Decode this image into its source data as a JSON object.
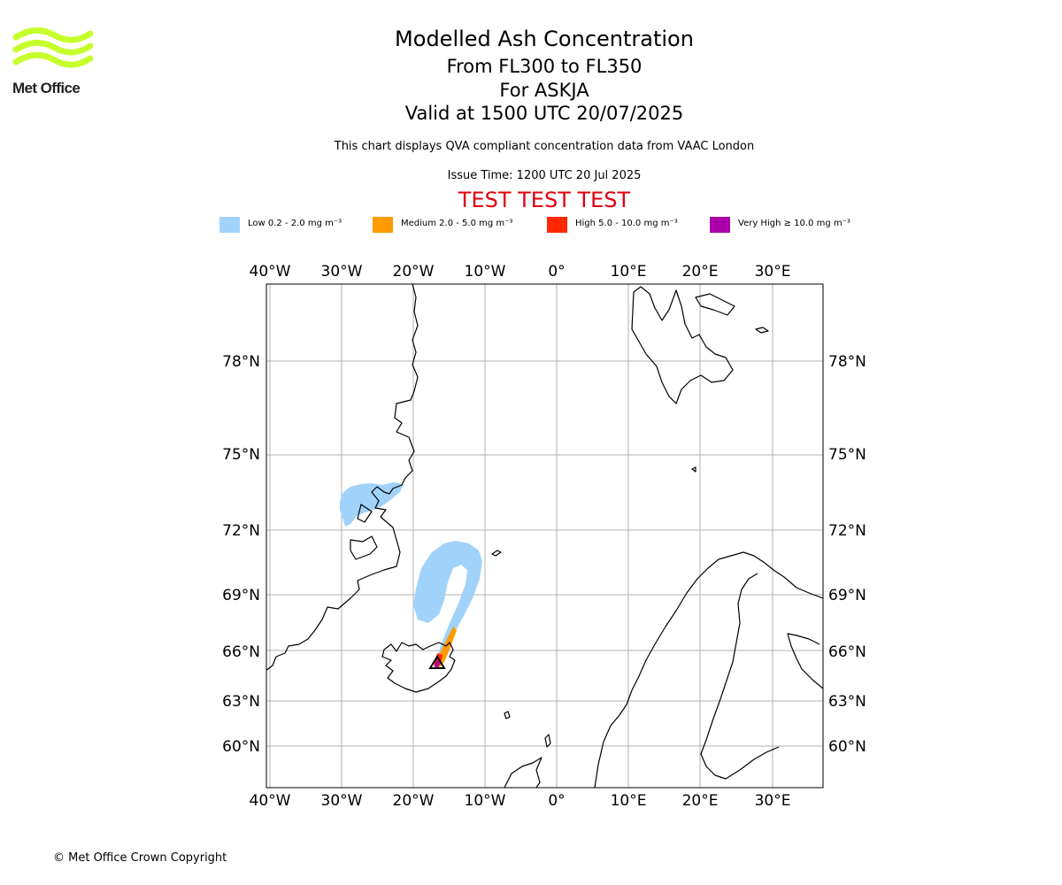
{
  "header": {
    "title": "Modelled Ash Concentration",
    "subtitle_levels": "From FL300 to FL350",
    "subtitle_volcano": "For ASKJA",
    "subtitle_valid": "Valid at 1500 UTC 20/07/2025",
    "description": "This chart displays QVA compliant concentration data from VAAC London",
    "issue_time": "Issue Time: 1200 UTC 20 Jul 2025",
    "test_banner": "TEST TEST TEST"
  },
  "logo": {
    "text": "Met Office",
    "icon": "met-office-waves-logo",
    "color": "#c6ff2c"
  },
  "legend": [
    {
      "label": "Low 0.2 - 2.0 mg m⁻³",
      "color": "#a0d2fa"
    },
    {
      "label": "Medium 2.0 - 5.0 mg m⁻³",
      "color": "#ff9a00"
    },
    {
      "label": "High 5.0 - 10.0 mg m⁻³",
      "color": "#ff2800"
    },
    {
      "label": "Very High ≥ 10.0 mg m⁻³",
      "color": "#aa00aa"
    }
  ],
  "map": {
    "lon_ticks": [
      "40°W",
      "30°W",
      "20°W",
      "10°W",
      "0°",
      "10°E",
      "20°E",
      "30°E"
    ],
    "lat_ticks": [
      "78°N",
      "75°N",
      "72°N",
      "69°N",
      "66°N",
      "63°N",
      "60°N"
    ],
    "volcano_marker": "triangle-marker",
    "coastline_color": "#000000",
    "grid_color": "#b0b0b0"
  },
  "footer": {
    "copyright": "© Met Office Crown Copyright"
  }
}
